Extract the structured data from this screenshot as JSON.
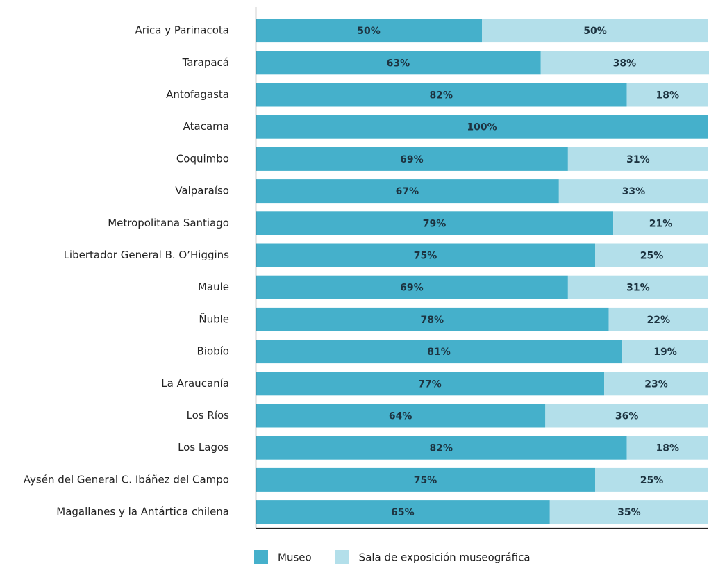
{
  "chart_data": {
    "type": "stacked_barh",
    "categories": [
      "Arica y Parinacota",
      "Tarapacá",
      "Antofagasta",
      "Atacama",
      "Coquimbo",
      "Valparaíso",
      "Metropolitana Santiago",
      "Libertador General B. O’Higgins",
      "Maule",
      "Ñuble",
      "Biobío",
      "La Araucanía",
      "Los Ríos",
      "Los Lagos",
      "Aysén del General C. Ibáñez del Campo",
      "Magallanes y la Antártica chilena"
    ],
    "series": [
      {
        "name": "Museo",
        "color": "#45b0cb",
        "values": [
          50,
          63,
          82,
          100,
          69,
          67,
          79,
          75,
          69,
          78,
          81,
          77,
          64,
          82,
          75,
          65
        ],
        "value_labels": [
          "50%",
          "63%",
          "82%",
          "100%",
          "69%",
          "67%",
          "79%",
          "75%",
          "69%",
          "78%",
          "81%",
          "77%",
          "64%",
          "82%",
          "75%",
          "65%"
        ]
      },
      {
        "name": "Sala de exposición museográfica",
        "color": "#b3dfea",
        "values": [
          50,
          38,
          18,
          0,
          31,
          33,
          21,
          25,
          31,
          22,
          19,
          23,
          36,
          18,
          25,
          35
        ],
        "value_labels": [
          "50%",
          "38%",
          "18%",
          null,
          "31%",
          "33%",
          "21%",
          "25%",
          "31%",
          "22%",
          "19%",
          "23%",
          "36%",
          "18%",
          "25%",
          "35%"
        ]
      }
    ],
    "xlim": [
      0,
      100
    ],
    "legend": "bottom"
  }
}
